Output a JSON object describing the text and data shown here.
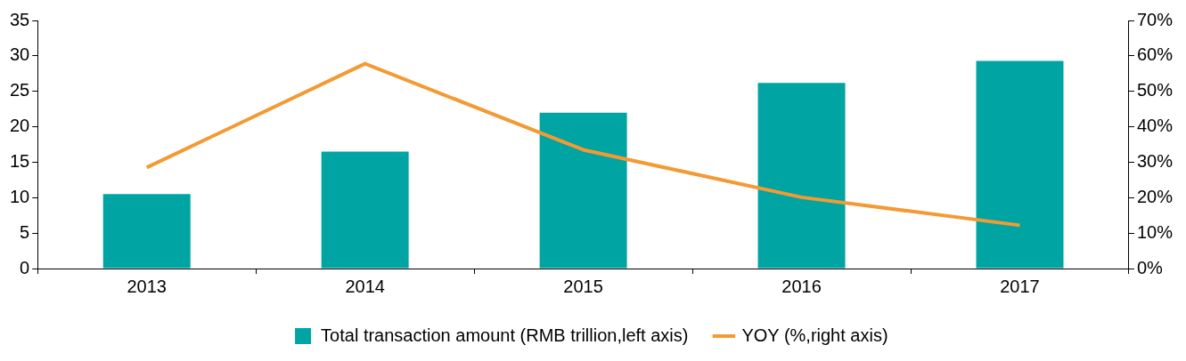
{
  "chart_data": {
    "type": "bar",
    "categories": [
      "2013",
      "2014",
      "2015",
      "2016",
      "2017"
    ],
    "series": [
      {
        "name": "Total transaction amount (RMB trillion,left axis)",
        "color": "#00a4a2",
        "values": [
          10.5,
          16.5,
          22,
          26.2,
          29.3
        ]
      },
      {
        "name": "YOY (%,right axis)",
        "type": "line",
        "axis": "y2",
        "color": "#f39a34",
        "values": [
          28.5,
          57.8,
          33.5,
          20.1,
          12.2
        ]
      }
    ],
    "ylim": [
      0,
      35
    ],
    "yticks": [
      0,
      5,
      10,
      15,
      20,
      25,
      30,
      35
    ],
    "y2lim": [
      0,
      70
    ],
    "y2ticks": [
      {
        "value": 0,
        "label": "0%"
      },
      {
        "value": 10,
        "label": "10%"
      },
      {
        "value": 20,
        "label": "20%"
      },
      {
        "value": 30,
        "label": "30%"
      },
      {
        "value": 40,
        "label": "40%"
      },
      {
        "value": 50,
        "label": "50%"
      },
      {
        "value": 60,
        "label": "60%"
      },
      {
        "value": 70,
        "label": "70%"
      }
    ],
    "grid": false,
    "legend": "bottom",
    "marker": "none",
    "line_style": "solid"
  }
}
